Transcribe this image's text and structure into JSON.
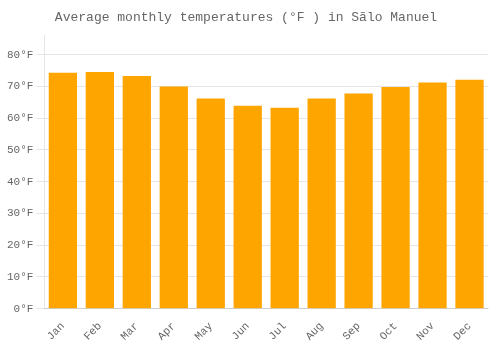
{
  "chart_data": {
    "type": "bar",
    "title": "Average monthly temperatures (°F ) in Sãlo Manuel",
    "categories": [
      "Jan",
      "Feb",
      "Mar",
      "Apr",
      "May",
      "Jun",
      "Jul",
      "Aug",
      "Sep",
      "Oct",
      "Nov",
      "Dec"
    ],
    "values": [
      74.3,
      74.5,
      73.3,
      70.0,
      66.2,
      63.9,
      63.3,
      66.2,
      67.8,
      69.8,
      71.2,
      72.1
    ],
    "color": "#FFA500",
    "ylim": [
      0,
      86
    ],
    "yticks": [
      {
        "value": 0,
        "label": "0°F"
      },
      {
        "value": 10,
        "label": "10°F"
      },
      {
        "value": 20,
        "label": "20°F"
      },
      {
        "value": 30,
        "label": "30°F"
      },
      {
        "value": 40,
        "label": "40°F"
      },
      {
        "value": 50,
        "label": "50°F"
      },
      {
        "value": 60,
        "label": "60°F"
      },
      {
        "value": 70,
        "label": "70°F"
      },
      {
        "value": 80,
        "label": "80°F"
      }
    ],
    "grid": true
  }
}
